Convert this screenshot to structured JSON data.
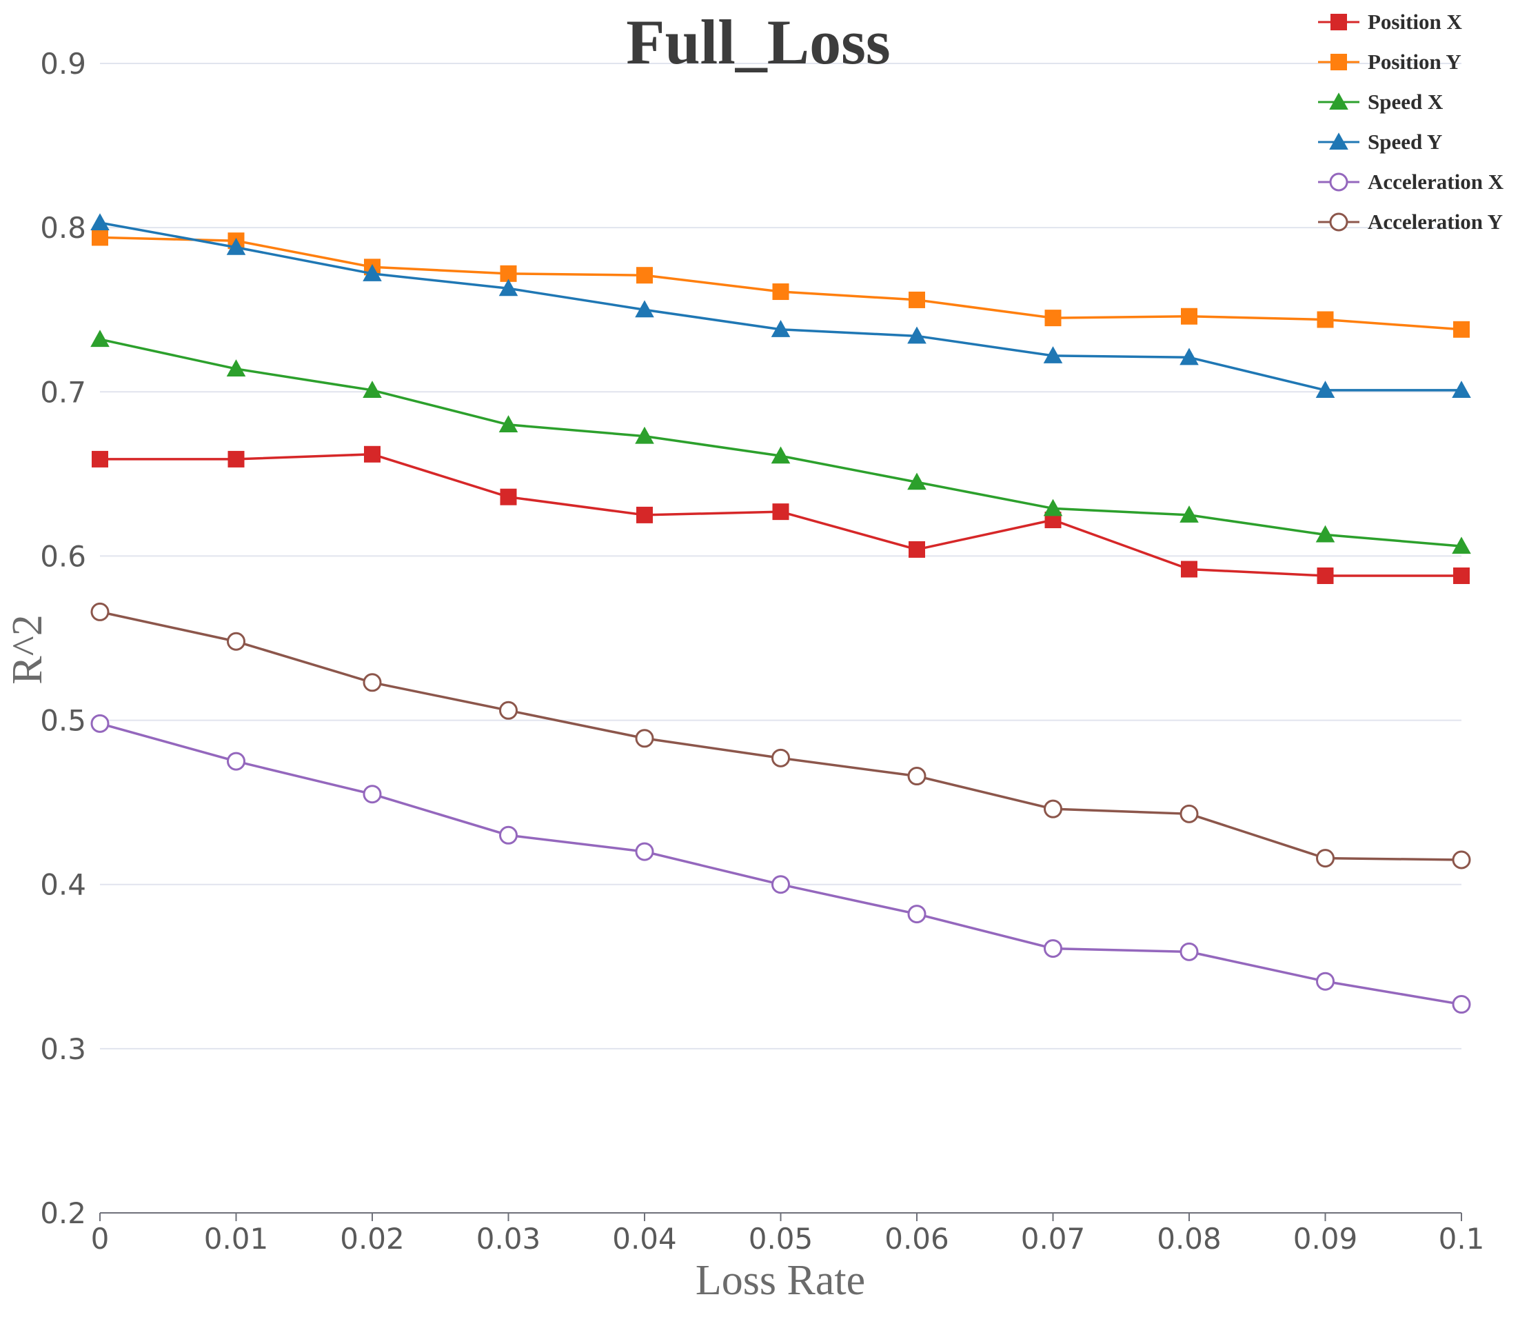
{
  "chart_data": {
    "type": "line",
    "title": "Full_Loss",
    "xlabel": "Loss Rate",
    "ylabel": "R^2",
    "x": [
      0,
      0.01,
      0.02,
      0.03,
      0.04,
      0.05,
      0.06,
      0.07,
      0.08,
      0.09,
      0.1
    ],
    "x_tick_labels": [
      "0",
      "0.01",
      "0.02",
      "0.03",
      "0.04",
      "0.05",
      "0.06",
      "0.07",
      "0.08",
      "0.09",
      "0.1"
    ],
    "y_tick_labels": [
      "0.2",
      "0.3",
      "0.4",
      "0.5",
      "0.6",
      "0.7",
      "0.8",
      "0.9"
    ],
    "xlim": [
      0,
      0.1
    ],
    "ylim": [
      0.2,
      0.9
    ],
    "grid": "horizontal",
    "legend_position": "top-right",
    "series": [
      {
        "name": "Position X",
        "color": "#d62728",
        "marker": "square",
        "values": [
          0.659,
          0.659,
          0.662,
          0.636,
          0.625,
          0.627,
          0.604,
          0.622,
          0.592,
          0.588,
          0.588
        ]
      },
      {
        "name": "Position Y",
        "color": "#ff7f0e",
        "marker": "square",
        "values": [
          0.794,
          0.792,
          0.776,
          0.772,
          0.771,
          0.761,
          0.756,
          0.745,
          0.746,
          0.744,
          0.738
        ]
      },
      {
        "name": "Speed X",
        "color": "#2ca02c",
        "marker": "triangle",
        "values": [
          0.732,
          0.714,
          0.701,
          0.68,
          0.673,
          0.661,
          0.645,
          0.629,
          0.625,
          0.613,
          0.606
        ]
      },
      {
        "name": "Speed Y",
        "color": "#1f77b4",
        "marker": "triangle",
        "values": [
          0.803,
          0.788,
          0.772,
          0.763,
          0.75,
          0.738,
          0.734,
          0.722,
          0.721,
          0.701,
          0.701
        ]
      },
      {
        "name": "Acceleration X",
        "color": "#9467bd",
        "marker": "circle",
        "values": [
          0.498,
          0.475,
          0.455,
          0.43,
          0.42,
          0.4,
          0.382,
          0.361,
          0.359,
          0.341,
          0.327
        ]
      },
      {
        "name": "Acceleration Y",
        "color": "#8c564b",
        "marker": "circle",
        "values": [
          0.566,
          0.548,
          0.523,
          0.506,
          0.489,
          0.477,
          0.466,
          0.446,
          0.443,
          0.416,
          0.415
        ]
      }
    ]
  }
}
